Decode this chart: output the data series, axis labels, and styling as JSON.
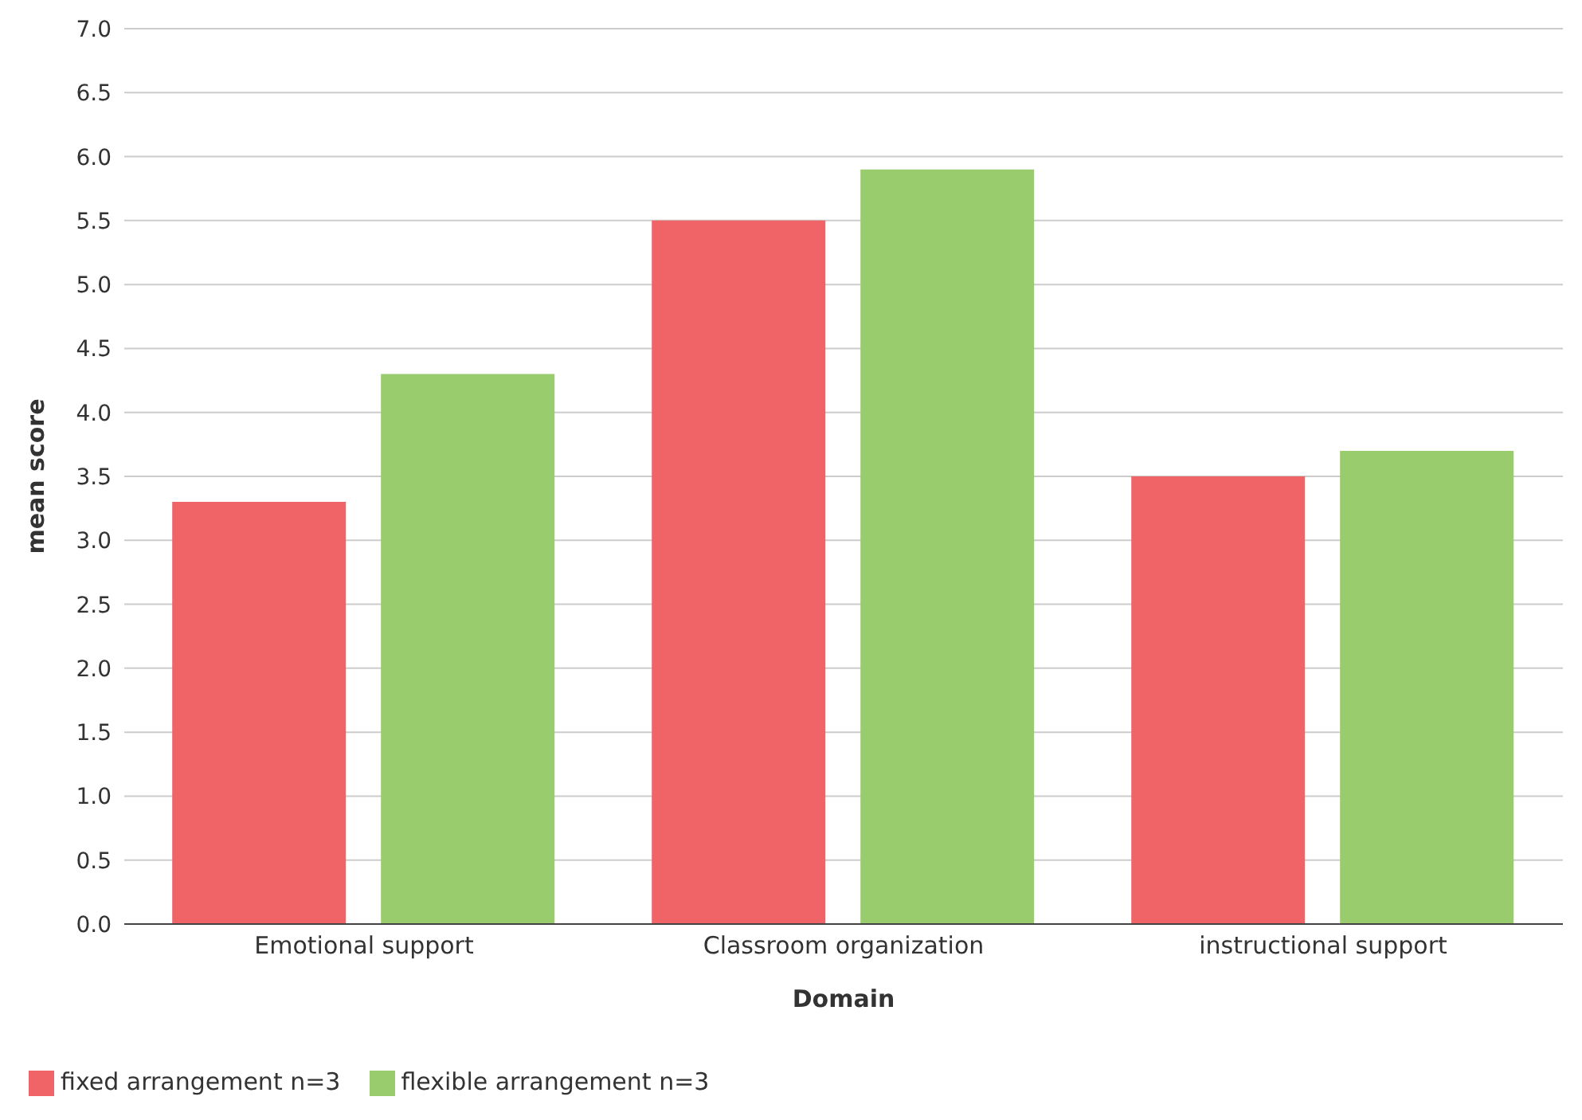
{
  "chart_data": {
    "type": "bar",
    "xlabel": "Domain",
    "ylabel": "mean score",
    "categories": [
      "Emotional support",
      "Classroom organization",
      "instructional support"
    ],
    "series": [
      {
        "name": "fixed arrangement n=3",
        "color": "#f06468",
        "values": [
          3.3,
          5.5,
          3.5
        ]
      },
      {
        "name": "flexible arrangement n=3",
        "color": "#99cc6c",
        "values": [
          4.3,
          5.9,
          3.7
        ]
      }
    ],
    "ylim": [
      0,
      7
    ],
    "yticks": [
      {
        "value": 0,
        "label": "0.0"
      },
      {
        "value": 0.5,
        "label": "0.5"
      },
      {
        "value": 1,
        "label": "1.0"
      },
      {
        "value": 1.5,
        "label": "1.5"
      },
      {
        "value": 2,
        "label": "2.0"
      },
      {
        "value": 2.5,
        "label": "2.5"
      },
      {
        "value": 3,
        "label": "3.0"
      },
      {
        "value": 3.5,
        "label": "3.5"
      },
      {
        "value": 4,
        "label": "4.0"
      },
      {
        "value": 4.5,
        "label": "4.5"
      },
      {
        "value": 5,
        "label": "5.0"
      },
      {
        "value": 5.5,
        "label": "5.5"
      },
      {
        "value": 6,
        "label": "6.0"
      },
      {
        "value": 6.5,
        "label": "6.5"
      },
      {
        "value": 7,
        "label": "7.0"
      }
    ],
    "grid": "y",
    "legend": "bottom left"
  }
}
